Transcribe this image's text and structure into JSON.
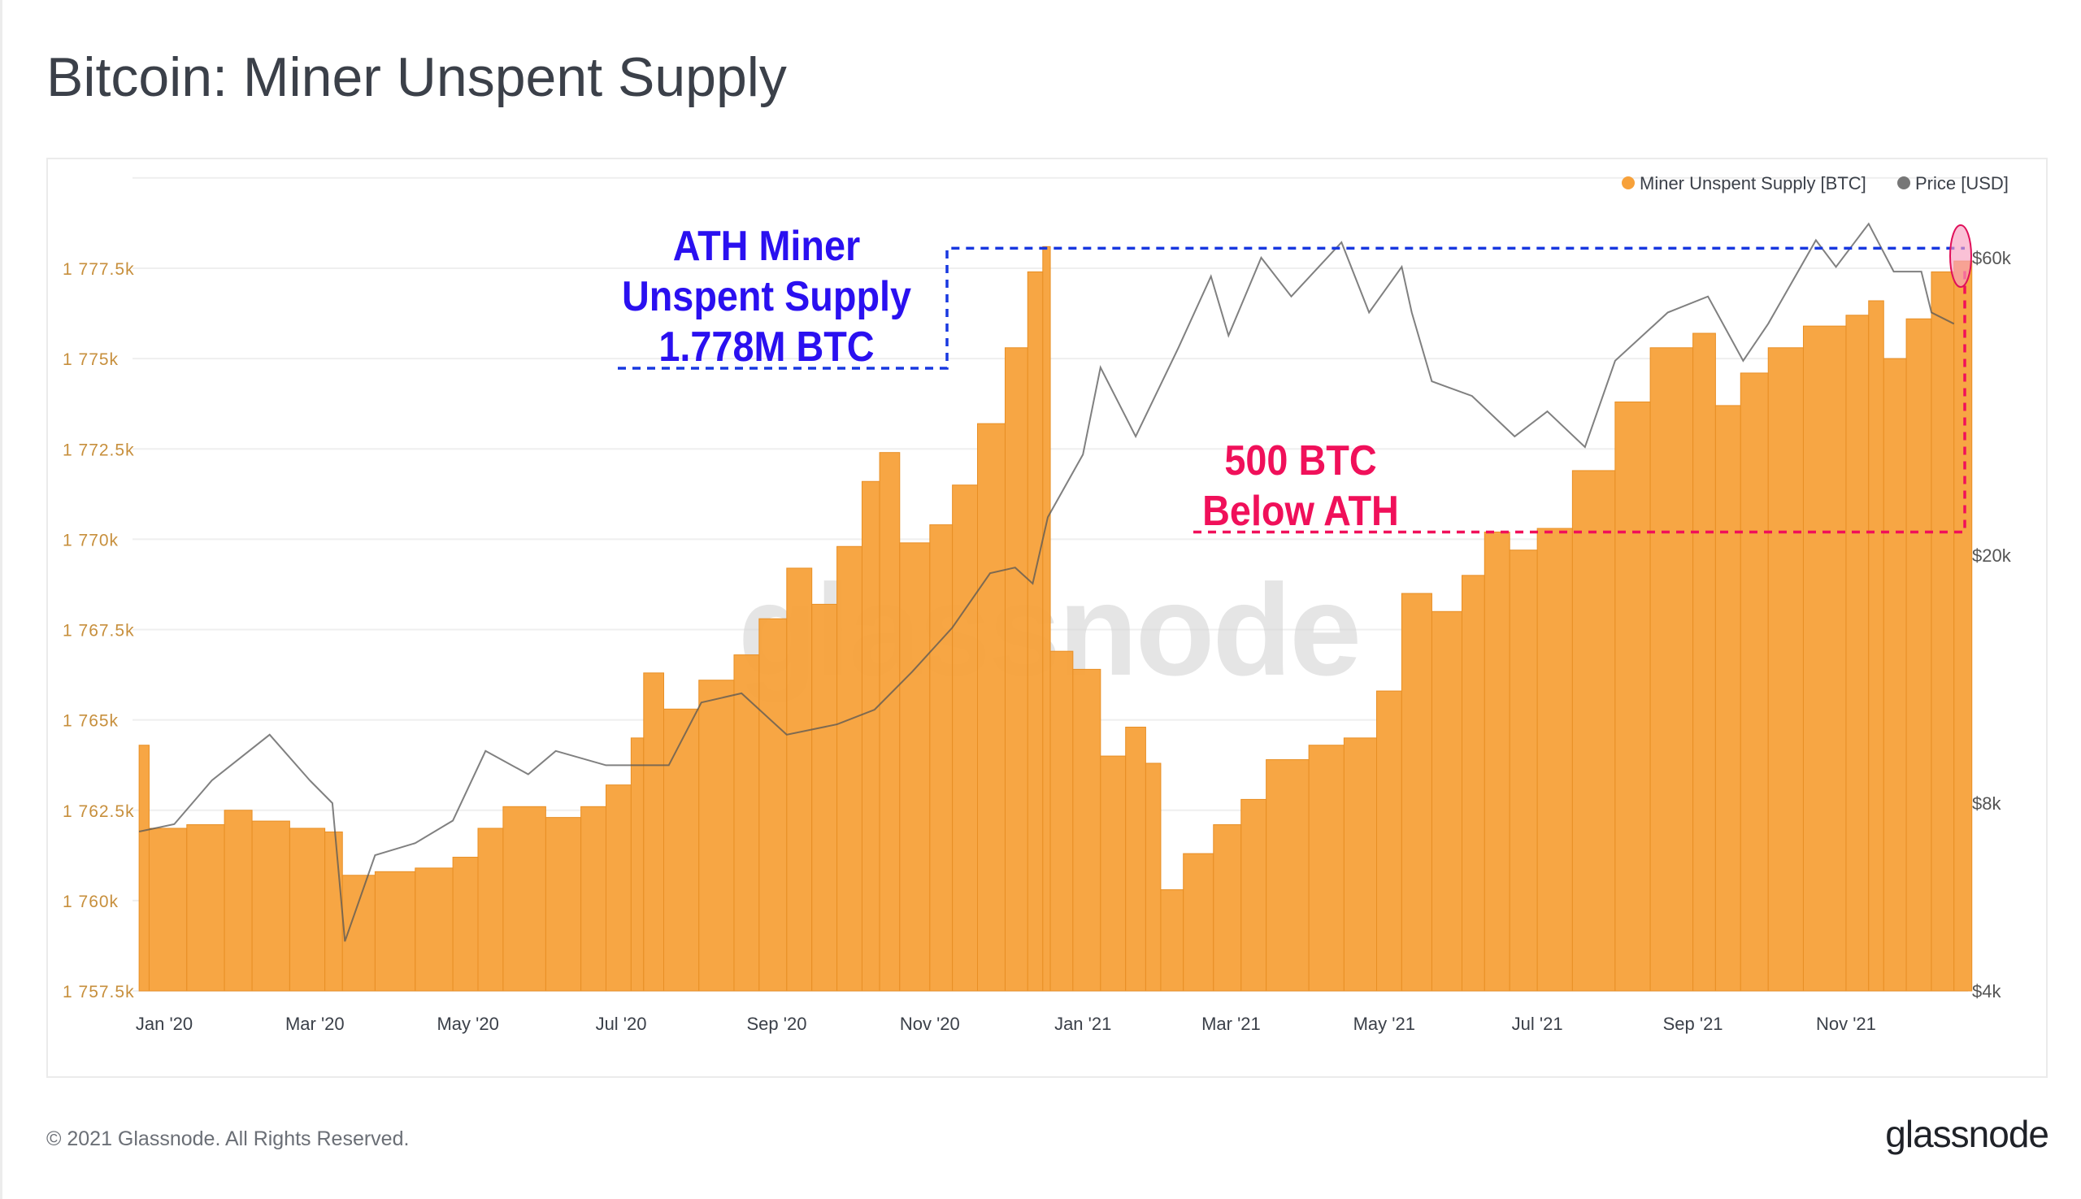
{
  "title": "Bitcoin: Miner Unspent Supply",
  "footer": {
    "copyright": "© 2021 Glassnode. All Rights Reserved.",
    "logo": "glassnode"
  },
  "watermark": "glassnode",
  "colors": {
    "supply": "#f7a13a",
    "supply_edge": "#e88f25",
    "price": "#555555",
    "ath_annotation": "#2a10f0",
    "below_annotation": "#f0105a",
    "axis_left": "#c78f3c",
    "axis_right": "#555555"
  },
  "annotations": {
    "ath": [
      "ATH Miner",
      "Unspent Supply",
      "1.778M BTC"
    ],
    "below": [
      "500 BTC",
      "Below ATH"
    ]
  },
  "chart_data": {
    "type": "bar+line",
    "title": "Bitcoin: Miner Unspent Supply",
    "legend": {
      "placement": "top-right",
      "entries": [
        {
          "name": "Miner Unspent Supply [BTC]",
          "color": "#f7a13a"
        },
        {
          "name": "Price [USD]",
          "color": "#777777"
        }
      ]
    },
    "x_ticks": [
      {
        "date": "2020-01-01",
        "label": "Jan '20"
      },
      {
        "date": "2020-03-01",
        "label": "Mar '20"
      },
      {
        "date": "2020-05-01",
        "label": "May '20"
      },
      {
        "date": "2020-07-01",
        "label": "Jul '20"
      },
      {
        "date": "2020-09-01",
        "label": "Sep '20"
      },
      {
        "date": "2020-11-01",
        "label": "Nov '20"
      },
      {
        "date": "2021-01-01",
        "label": "Jan '21"
      },
      {
        "date": "2021-03-01",
        "label": "Mar '21"
      },
      {
        "date": "2021-05-01",
        "label": "May '21"
      },
      {
        "date": "2021-07-01",
        "label": "Jul '21"
      },
      {
        "date": "2021-09-01",
        "label": "Sep '21"
      },
      {
        "date": "2021-11-01",
        "label": "Nov '21"
      }
    ],
    "y_left": {
      "range": [
        1757.5,
        1780
      ],
      "ticks": [
        {
          "v": 1757.5,
          "label": "1 757.5k"
        },
        {
          "v": 1760,
          "label": "1 760k"
        },
        {
          "v": 1762.5,
          "label": "1 762.5k"
        },
        {
          "v": 1765,
          "label": "1 765k"
        },
        {
          "v": 1767.5,
          "label": "1 767.5k"
        },
        {
          "v": 1770,
          "label": "1 770k"
        },
        {
          "v": 1772.5,
          "label": "1 772.5k"
        },
        {
          "v": 1775,
          "label": "1 775k"
        },
        {
          "v": 1777.5,
          "label": "1 777.5k"
        }
      ]
    },
    "y_right": {
      "scale": "log",
      "ticks": [
        {
          "v": 4000,
          "label": "$4k"
        },
        {
          "v": 8000,
          "label": "$8k"
        },
        {
          "v": 20000,
          "label": "$20k"
        },
        {
          "v": 60000,
          "label": "$60k"
        }
      ]
    },
    "grid": true,
    "supply": [
      [
        "2019-12-22",
        1764.3
      ],
      [
        "2019-12-26",
        1762.0
      ],
      [
        "2020-01-10",
        1762.1
      ],
      [
        "2020-01-25",
        1762.5
      ],
      [
        "2020-02-05",
        1762.2
      ],
      [
        "2020-02-20",
        1762.0
      ],
      [
        "2020-03-05",
        1761.9
      ],
      [
        "2020-03-12",
        1760.7
      ],
      [
        "2020-03-25",
        1760.8
      ],
      [
        "2020-04-10",
        1760.9
      ],
      [
        "2020-04-25",
        1761.2
      ],
      [
        "2020-05-05",
        1762.0
      ],
      [
        "2020-05-15",
        1762.6
      ],
      [
        "2020-06-01",
        1762.3
      ],
      [
        "2020-06-15",
        1762.6
      ],
      [
        "2020-06-25",
        1763.2
      ],
      [
        "2020-07-05",
        1764.5
      ],
      [
        "2020-07-10",
        1766.3
      ],
      [
        "2020-07-18",
        1765.3
      ],
      [
        "2020-08-01",
        1766.1
      ],
      [
        "2020-08-15",
        1766.8
      ],
      [
        "2020-08-25",
        1767.8
      ],
      [
        "2020-09-05",
        1769.2
      ],
      [
        "2020-09-15",
        1768.2
      ],
      [
        "2020-09-25",
        1769.8
      ],
      [
        "2020-10-05",
        1771.6
      ],
      [
        "2020-10-12",
        1772.4
      ],
      [
        "2020-10-20",
        1769.9
      ],
      [
        "2020-11-01",
        1770.4
      ],
      [
        "2020-11-10",
        1771.5
      ],
      [
        "2020-11-20",
        1773.2
      ],
      [
        "2020-12-01",
        1775.3
      ],
      [
        "2020-12-10",
        1777.4
      ],
      [
        "2020-12-16",
        1778.1
      ],
      [
        "2020-12-19",
        1766.9
      ],
      [
        "2020-12-28",
        1766.4
      ],
      [
        "2021-01-08",
        1764.0
      ],
      [
        "2021-01-18",
        1764.8
      ],
      [
        "2021-01-26",
        1763.8
      ],
      [
        "2021-02-01",
        1760.3
      ],
      [
        "2021-02-10",
        1761.3
      ],
      [
        "2021-02-22",
        1762.1
      ],
      [
        "2021-03-05",
        1762.8
      ],
      [
        "2021-03-15",
        1763.9
      ],
      [
        "2021-04-01",
        1764.3
      ],
      [
        "2021-04-15",
        1764.5
      ],
      [
        "2021-04-28",
        1765.8
      ],
      [
        "2021-05-08",
        1768.5
      ],
      [
        "2021-05-20",
        1768.0
      ],
      [
        "2021-06-01",
        1769.0
      ],
      [
        "2021-06-10",
        1770.2
      ],
      [
        "2021-06-20",
        1769.7
      ],
      [
        "2021-07-01",
        1770.3
      ],
      [
        "2021-07-15",
        1771.9
      ],
      [
        "2021-08-01",
        1773.8
      ],
      [
        "2021-08-15",
        1775.3
      ],
      [
        "2021-09-01",
        1775.7
      ],
      [
        "2021-09-10",
        1773.7
      ],
      [
        "2021-09-20",
        1774.6
      ],
      [
        "2021-10-01",
        1775.3
      ],
      [
        "2021-10-15",
        1775.9
      ],
      [
        "2021-11-01",
        1776.2
      ],
      [
        "2021-11-10",
        1776.6
      ],
      [
        "2021-11-16",
        1775.0
      ],
      [
        "2021-11-25",
        1776.1
      ],
      [
        "2021-12-05",
        1777.4
      ],
      [
        "2021-12-14",
        1777.7
      ]
    ],
    "price": [
      [
        "2019-12-22",
        7200
      ],
      [
        "2020-01-05",
        7400
      ],
      [
        "2020-01-20",
        8700
      ],
      [
        "2020-02-12",
        10300
      ],
      [
        "2020-02-28",
        8700
      ],
      [
        "2020-03-08",
        8000
      ],
      [
        "2020-03-13",
        4800
      ],
      [
        "2020-03-25",
        6600
      ],
      [
        "2020-04-10",
        6900
      ],
      [
        "2020-04-25",
        7500
      ],
      [
        "2020-05-08",
        9700
      ],
      [
        "2020-05-25",
        8900
      ],
      [
        "2020-06-05",
        9700
      ],
      [
        "2020-06-25",
        9200
      ],
      [
        "2020-07-20",
        9200
      ],
      [
        "2020-08-02",
        11600
      ],
      [
        "2020-08-18",
        12000
      ],
      [
        "2020-09-05",
        10300
      ],
      [
        "2020-09-25",
        10700
      ],
      [
        "2020-10-10",
        11300
      ],
      [
        "2020-10-25",
        13000
      ],
      [
        "2020-11-10",
        15300
      ],
      [
        "2020-11-25",
        18700
      ],
      [
        "2020-12-05",
        19100
      ],
      [
        "2020-12-12",
        18000
      ],
      [
        "2020-12-18",
        23000
      ],
      [
        "2021-01-01",
        29000
      ],
      [
        "2021-01-08",
        40000
      ],
      [
        "2021-01-22",
        31000
      ],
      [
        "2021-02-08",
        43000
      ],
      [
        "2021-02-21",
        56000
      ],
      [
        "2021-02-28",
        45000
      ],
      [
        "2021-03-13",
        60000
      ],
      [
        "2021-03-25",
        52000
      ],
      [
        "2021-04-14",
        63500
      ],
      [
        "2021-04-25",
        49000
      ],
      [
        "2021-05-08",
        58000
      ],
      [
        "2021-05-12",
        49000
      ],
      [
        "2021-05-20",
        38000
      ],
      [
        "2021-06-05",
        36000
      ],
      [
        "2021-06-22",
        31000
      ],
      [
        "2021-07-05",
        34000
      ],
      [
        "2021-07-20",
        29800
      ],
      [
        "2021-08-01",
        41000
      ],
      [
        "2021-08-22",
        49000
      ],
      [
        "2021-09-07",
        52000
      ],
      [
        "2021-09-21",
        41000
      ],
      [
        "2021-10-01",
        47000
      ],
      [
        "2021-10-20",
        64000
      ],
      [
        "2021-10-28",
        58000
      ],
      [
        "2021-11-10",
        68000
      ],
      [
        "2021-11-20",
        57000
      ],
      [
        "2021-12-01",
        57000
      ],
      [
        "2021-12-05",
        49000
      ],
      [
        "2021-12-14",
        47000
      ]
    ]
  }
}
